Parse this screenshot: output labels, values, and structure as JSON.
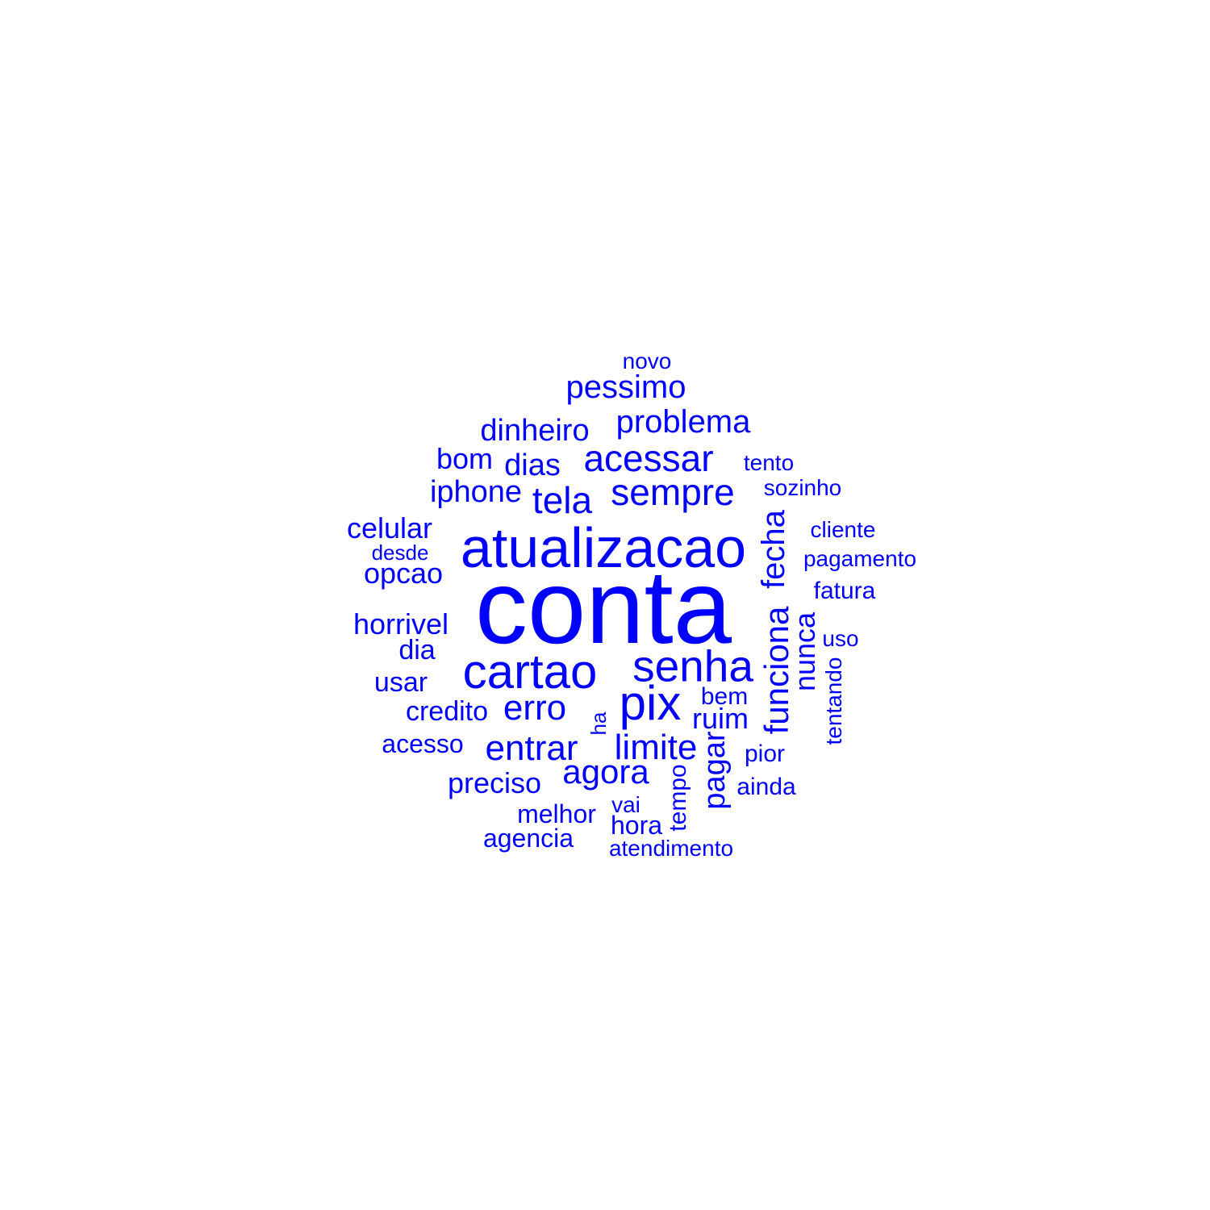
{
  "style": {
    "word_color": "#0000ff",
    "background": "#ffffff"
  },
  "words": {
    "conta": "conta",
    "atualizacao": "atualizacao",
    "cartao": "cartao",
    "senha": "senha",
    "pix": "pix",
    "sempre": "sempre",
    "acessar": "acessar",
    "tela": "tela",
    "problema": "problema",
    "pessimo": "pessimo",
    "dinheiro": "dinheiro",
    "dias": "dias",
    "bom": "bom",
    "iphone": "iphone",
    "celular": "celular",
    "desde": "desde",
    "opcao": "opcao",
    "horrivel": "horrivel",
    "dia": "dia",
    "usar": "usar",
    "credito": "credito",
    "erro": "erro",
    "acesso": "acesso",
    "entrar": "entrar",
    "limite": "limite",
    "agora": "agora",
    "preciso": "preciso",
    "melhor": "melhor",
    "agencia": "agencia",
    "vai": "vai",
    "hora": "hora",
    "atendimento": "atendimento",
    "ruim": "ruim",
    "bem": "bem",
    "pior": "pior",
    "ainda": "ainda",
    "tento": "tento",
    "sozinho": "sozinho",
    "cliente": "cliente",
    "pagamento": "pagamento",
    "fatura": "fatura",
    "uso": "uso",
    "novo": "novo",
    "fecha": "fecha",
    "funciona": "funciona",
    "nunca": "nunca",
    "tentando": "tentando",
    "ha": "ha",
    "tempo": "tempo",
    "pagar": "pagar"
  }
}
